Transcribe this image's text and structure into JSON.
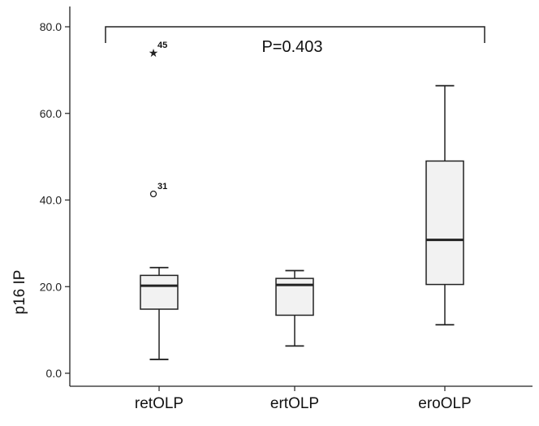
{
  "chart_data": {
    "type": "boxplot",
    "ylabel": "p16 IP",
    "xlabel": "",
    "ylim": [
      -2,
      82
    ],
    "yticks": [
      "0.0",
      "20.0",
      "40.0",
      "60.0",
      "80.0"
    ],
    "ytick_values": [
      0,
      20,
      40,
      60,
      80
    ],
    "categories": [
      "retOLP",
      "ertOLP",
      "eroOLP"
    ],
    "boxes": [
      {
        "category": "retOLP",
        "min": 3.2,
        "q1": 14.8,
        "median": 20.2,
        "q3": 22.6,
        "max": 24.4
      },
      {
        "category": "ertOLP",
        "min": 6.3,
        "q1": 13.4,
        "median": 20.4,
        "q3": 21.9,
        "max": 23.7
      },
      {
        "category": "eroOLP",
        "min": 11.2,
        "q1": 20.5,
        "median": 30.8,
        "q3": 49.0,
        "max": 66.4
      }
    ],
    "outliers": [
      {
        "category": "retOLP",
        "value": 41.4,
        "marker": "circle",
        "label": "31"
      },
      {
        "category": "retOLP",
        "value": 74.0,
        "marker": "star",
        "label": "45"
      }
    ],
    "annotation": {
      "text": "P=0.403",
      "spans": [
        "retOLP",
        "eroOLP"
      ]
    },
    "colors": {
      "box_fill": "#f2f2f2",
      "stroke": "#222222"
    }
  }
}
